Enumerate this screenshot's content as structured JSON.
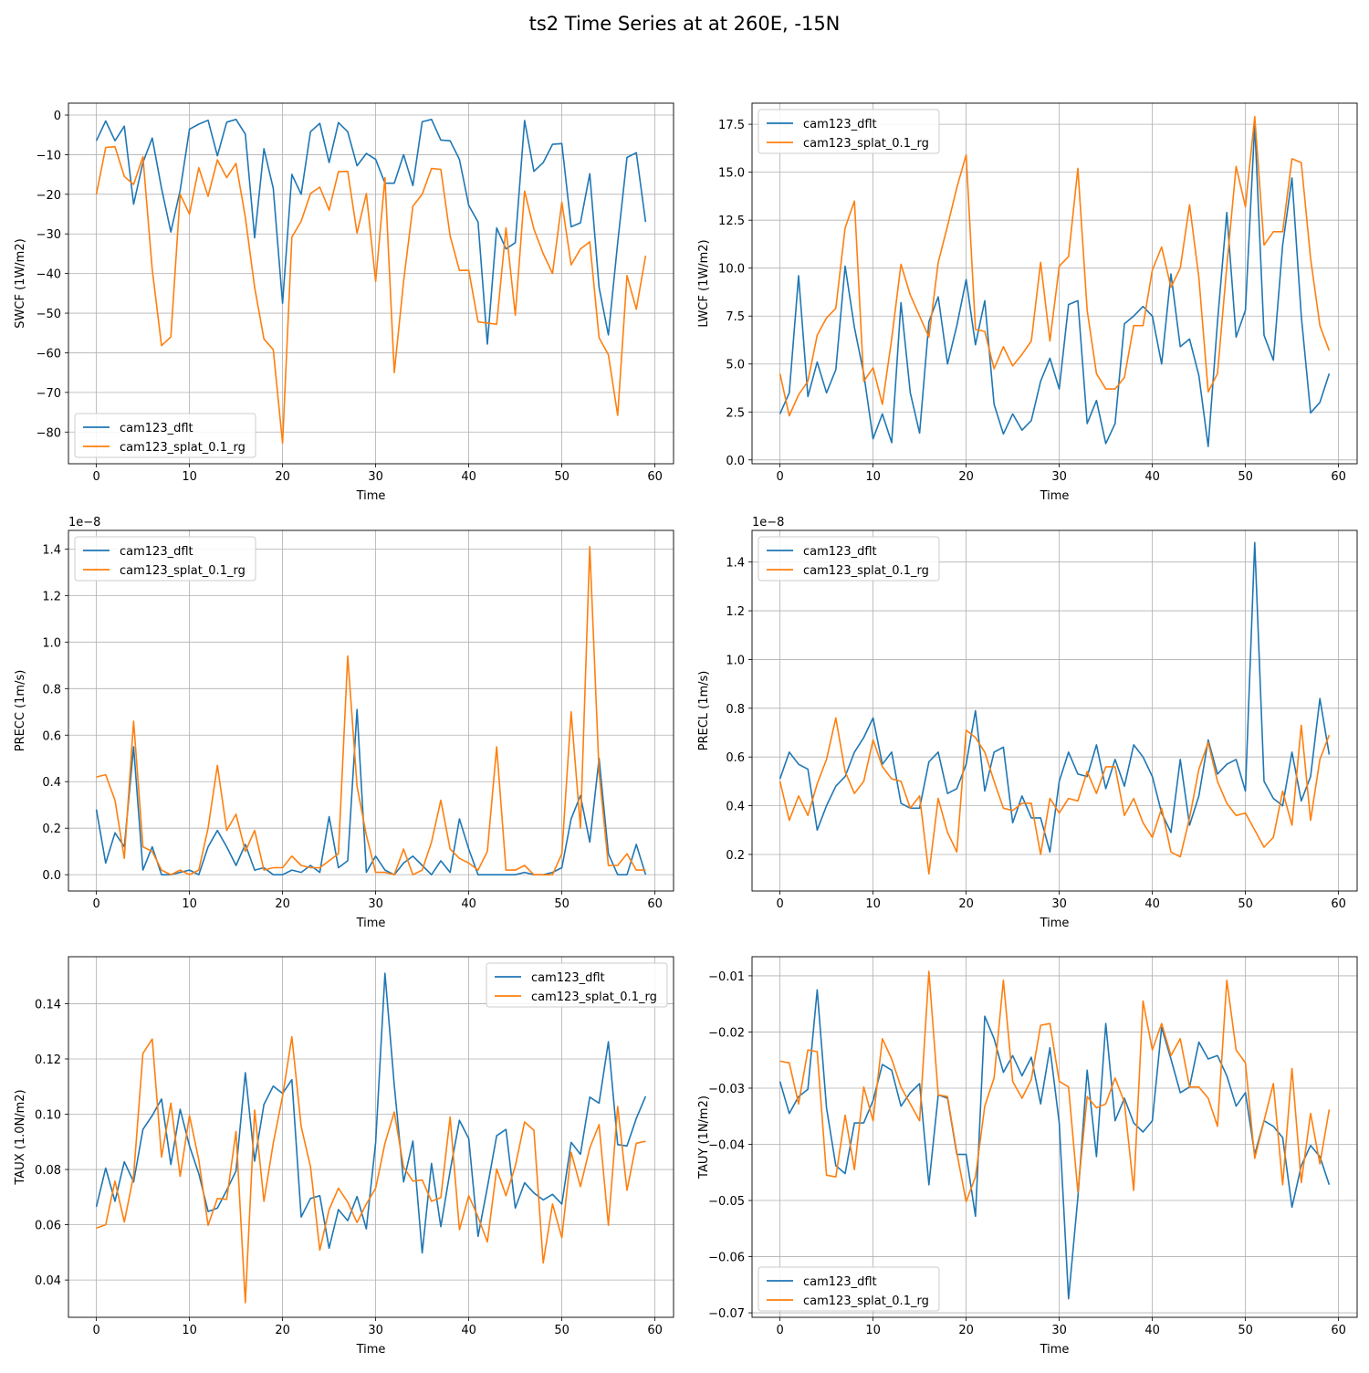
{
  "title": "ts2 Time Series at at 260E, -15N",
  "colors": {
    "series_0": "#1f77b4",
    "series_1": "#ff7f0e",
    "grid": "#b0b0b0",
    "axes": "#000000"
  },
  "chart_data": [
    {
      "type": "line",
      "ylabel": "SWCF (1W/m2)",
      "xlabel": "Time",
      "xlim": [
        -3,
        62
      ],
      "ylim": [
        -88,
        3
      ],
      "xticks": [
        0,
        10,
        20,
        30,
        40,
        50,
        60
      ],
      "yticks": [
        0,
        -10,
        -20,
        -30,
        -40,
        -50,
        -60,
        -70,
        -80
      ],
      "ytick_labels": [
        "0",
        "−10",
        "−20",
        "−30",
        "−40",
        "−50",
        "−60",
        "−70",
        "−80"
      ],
      "x_tick_labels": [
        "0",
        "10",
        "20",
        "30",
        "40",
        "50",
        "60"
      ],
      "grid": true,
      "legend": "lower-left",
      "series": [
        {
          "name": "cam123_dflt",
          "values": [
            -6.5,
            -1.5,
            -6.5,
            -2.8,
            -22.5,
            -12,
            -5.8,
            -18.5,
            -29.5,
            -19,
            -3.6,
            -2.3,
            -1.3,
            -10.3,
            -1.8,
            -1.1,
            -4.8,
            -31,
            -8.5,
            -18.5,
            -47.5,
            -15,
            -20,
            -4.2,
            -2.1,
            -12,
            -1.9,
            -4.2,
            -12.8,
            -9.7,
            -11.2,
            -17.2,
            -17.2,
            -10,
            -17.8,
            -1.7,
            -1.1,
            -6.3,
            -6.5,
            -11.2,
            -22.8,
            -27,
            -57.8,
            -28.5,
            -33.8,
            -32.2,
            -1.4,
            -14.2,
            -12,
            -7.4,
            -7.2,
            -28.2,
            -27.2,
            -14.8,
            -43.5,
            -55.5,
            -32.2,
            -10.7,
            -9.5,
            -27
          ]
        },
        {
          "name": "cam123_splat_0.1_rg",
          "values": [
            -20,
            -8.2,
            -8,
            -15.5,
            -17.5,
            -10.5,
            -39,
            -58.2,
            -56,
            -20,
            -25,
            -13.3,
            -20.5,
            -11.3,
            -15.8,
            -12.2,
            -25.8,
            -43.5,
            -56.5,
            -59.2,
            -82.8,
            -30.8,
            -26.8,
            -19.8,
            -18.2,
            -24,
            -14.3,
            -14.2,
            -29.8,
            -19.8,
            -42,
            -15.8,
            -65,
            -42,
            -23,
            -20,
            -13.5,
            -13.7,
            -30.5,
            -39.2,
            -39.2,
            -52.2,
            -52.5,
            -52.8,
            -28.5,
            -50.5,
            -19.2,
            -28.8,
            -35,
            -40,
            -22,
            -37.8,
            -33.8,
            -32,
            -56.2,
            -60.5,
            -75.8,
            -40.5,
            -49,
            -35.5
          ]
        }
      ]
    },
    {
      "type": "line",
      "ylabel": "LWCF (1W/m2)",
      "xlabel": "Time",
      "xlim": [
        -3,
        62
      ],
      "ylim": [
        -0.2,
        18.6
      ],
      "xticks": [
        0,
        10,
        20,
        30,
        40,
        50,
        60
      ],
      "yticks": [
        0,
        2.5,
        5,
        7.5,
        10,
        12.5,
        15,
        17.5
      ],
      "ytick_labels": [
        "0.0",
        "2.5",
        "5.0",
        "7.5",
        "10.0",
        "12.5",
        "15.0",
        "17.5"
      ],
      "x_tick_labels": [
        "0",
        "10",
        "20",
        "30",
        "40",
        "50",
        "60"
      ],
      "grid": true,
      "legend": "upper-left",
      "series": [
        {
          "name": "cam123_dflt",
          "values": [
            2.4,
            3.5,
            9.6,
            3.3,
            5.1,
            3.5,
            4.7,
            10.1,
            6.9,
            4.5,
            1.1,
            2.4,
            0.9,
            8.2,
            3.5,
            1.4,
            7.2,
            8.5,
            5,
            7,
            9.4,
            6,
            8.3,
            2.9,
            1.35,
            2.4,
            1.55,
            2.05,
            4.1,
            5.3,
            3.7,
            8.1,
            8.3,
            1.9,
            3.1,
            0.85,
            1.9,
            7.1,
            7.5,
            8,
            7.5,
            5,
            9.7,
            5.9,
            6.3,
            4.4,
            0.7,
            7.2,
            12.9,
            6.4,
            7.8,
            17.5,
            6.5,
            5.2,
            11.2,
            14.7,
            7.5,
            2.45,
            3,
            4.5
          ]
        },
        {
          "name": "cam123_splat_0.1_rg",
          "values": [
            4.5,
            2.3,
            3.4,
            4.1,
            6.5,
            7.4,
            7.9,
            12.1,
            13.5,
            4.1,
            4.8,
            2.9,
            6.3,
            10.2,
            8.6,
            7.5,
            6.4,
            10.3,
            12.2,
            14.2,
            15.9,
            6.8,
            6.7,
            4.75,
            5.9,
            4.9,
            5.5,
            6.2,
            10.3,
            6.2,
            10.1,
            10.6,
            15.2,
            7.8,
            4.5,
            3.7,
            3.7,
            4.3,
            7,
            7,
            9.9,
            11.1,
            9,
            10,
            13.3,
            9.5,
            3.55,
            4.5,
            10.1,
            15.3,
            13.2,
            17.9,
            11.2,
            11.9,
            11.9,
            15.7,
            15.5,
            10.5,
            7,
            5.7
          ]
        }
      ]
    },
    {
      "type": "line",
      "ylabel": "PRECC (1m/s)",
      "xlabel": "Time",
      "y_scale_note": "1e−8",
      "xlim": [
        -3,
        62
      ],
      "ylim": [
        -0.07,
        1.48
      ],
      "xticks": [
        0,
        10,
        20,
        30,
        40,
        50,
        60
      ],
      "yticks": [
        0,
        0.2,
        0.4,
        0.6,
        0.8,
        1.0,
        1.2,
        1.4
      ],
      "ytick_labels": [
        "0.0",
        "0.2",
        "0.4",
        "0.6",
        "0.8",
        "1.0",
        "1.2",
        "1.4"
      ],
      "x_tick_labels": [
        "0",
        "10",
        "20",
        "30",
        "40",
        "50",
        "60"
      ],
      "grid": true,
      "legend": "upper-left",
      "series": [
        {
          "name": "cam123_dflt",
          "values": [
            0.28,
            0.05,
            0.18,
            0.12,
            0.55,
            0.02,
            0.12,
            0,
            0,
            0.01,
            0.02,
            0,
            0.12,
            0.19,
            0.12,
            0.04,
            0.13,
            0.02,
            0.03,
            0,
            0,
            0.02,
            0.01,
            0.04,
            0.01,
            0.25,
            0.03,
            0.06,
            0.71,
            0.01,
            0.08,
            0.02,
            0,
            0.05,
            0.08,
            0.04,
            0,
            0.06,
            0.01,
            0.24,
            0.11,
            0,
            0,
            0,
            0,
            0,
            0.01,
            0,
            0,
            0.01,
            0.03,
            0.24,
            0.34,
            0.14,
            0.5,
            0.09,
            0,
            0,
            0.13,
            0
          ]
        },
        {
          "name": "cam123_splat_0.1_rg",
          "values": [
            0.42,
            0.43,
            0.32,
            0.07,
            0.66,
            0.12,
            0.1,
            0.02,
            0,
            0.02,
            0,
            0.02,
            0.2,
            0.47,
            0.19,
            0.26,
            0.1,
            0.19,
            0.02,
            0.03,
            0.03,
            0.08,
            0.04,
            0.03,
            0.03,
            0.06,
            0.09,
            0.94,
            0.38,
            0.17,
            0.01,
            0.01,
            0,
            0.11,
            0,
            0.02,
            0.14,
            0.32,
            0.11,
            0.07,
            0.05,
            0.02,
            0.1,
            0.55,
            0.02,
            0.02,
            0.04,
            0,
            0,
            0,
            0.09,
            0.7,
            0.2,
            1.41,
            0.44,
            0.04,
            0.04,
            0.09,
            0.02,
            0.02
          ]
        }
      ]
    },
    {
      "type": "line",
      "ylabel": "PRECL (1m/s)",
      "xlabel": "Time",
      "y_scale_note": "1e−8",
      "xlim": [
        -3,
        62
      ],
      "ylim": [
        0.05,
        1.53
      ],
      "xticks": [
        0,
        10,
        20,
        30,
        40,
        50,
        60
      ],
      "yticks": [
        0.2,
        0.4,
        0.6,
        0.8,
        1.0,
        1.2,
        1.4
      ],
      "ytick_labels": [
        "0.2",
        "0.4",
        "0.6",
        "0.8",
        "1.0",
        "1.2",
        "1.4"
      ],
      "x_tick_labels": [
        "0",
        "10",
        "20",
        "30",
        "40",
        "50",
        "60"
      ],
      "grid": true,
      "legend": "upper-left",
      "series": [
        {
          "name": "cam123_dflt",
          "values": [
            0.51,
            0.62,
            0.57,
            0.55,
            0.3,
            0.4,
            0.48,
            0.52,
            0.62,
            0.68,
            0.76,
            0.57,
            0.62,
            0.41,
            0.39,
            0.39,
            0.58,
            0.62,
            0.45,
            0.47,
            0.57,
            0.79,
            0.46,
            0.62,
            0.64,
            0.33,
            0.44,
            0.35,
            0.35,
            0.21,
            0.5,
            0.62,
            0.53,
            0.52,
            0.65,
            0.47,
            0.59,
            0.48,
            0.65,
            0.6,
            0.52,
            0.37,
            0.29,
            0.59,
            0.32,
            0.44,
            0.67,
            0.53,
            0.57,
            0.59,
            0.46,
            1.48,
            0.5,
            0.43,
            0.4,
            0.62,
            0.42,
            0.52,
            0.84,
            0.61
          ]
        },
        {
          "name": "cam123_splat_0.1_rg",
          "values": [
            0.5,
            0.34,
            0.44,
            0.36,
            0.49,
            0.59,
            0.76,
            0.54,
            0.45,
            0.5,
            0.67,
            0.56,
            0.51,
            0.5,
            0.39,
            0.44,
            0.12,
            0.43,
            0.29,
            0.21,
            0.71,
            0.68,
            0.62,
            0.5,
            0.39,
            0.38,
            0.41,
            0.41,
            0.2,
            0.43,
            0.37,
            0.43,
            0.42,
            0.54,
            0.45,
            0.56,
            0.56,
            0.36,
            0.43,
            0.33,
            0.27,
            0.39,
            0.21,
            0.19,
            0.35,
            0.55,
            0.66,
            0.5,
            0.41,
            0.36,
            0.37,
            0.3,
            0.23,
            0.27,
            0.46,
            0.32,
            0.73,
            0.34,
            0.59,
            0.69
          ]
        }
      ]
    },
    {
      "type": "line",
      "ylabel": "TAUX (1.0N/m2)",
      "xlabel": "Time",
      "xlim": [
        -3,
        62
      ],
      "ylim": [
        0.0265,
        0.157
      ],
      "xticks": [
        0,
        10,
        20,
        30,
        40,
        50,
        60
      ],
      "yticks": [
        0.04,
        0.06,
        0.08,
        0.1,
        0.12,
        0.14
      ],
      "ytick_labels": [
        "0.04",
        "0.06",
        "0.08",
        "0.10",
        "0.12",
        "0.14"
      ],
      "x_tick_labels": [
        "0",
        "10",
        "20",
        "30",
        "40",
        "50",
        "60"
      ],
      "grid": true,
      "legend": "upper-right",
      "series": [
        {
          "name": "cam123_dflt",
          "values": [
            0.0665,
            0.0805,
            0.0685,
            0.0828,
            0.0755,
            0.0945,
            0.0995,
            0.1055,
            0.0818,
            0.1018,
            0.0885,
            0.0785,
            0.0648,
            0.066,
            0.0725,
            0.0795,
            0.115,
            0.083,
            0.1035,
            0.1102,
            0.1075,
            0.1125,
            0.0628,
            0.0695,
            0.0705,
            0.0515,
            0.0655,
            0.0615,
            0.0702,
            0.0585,
            0.0898,
            0.151,
            0.1105,
            0.0755,
            0.0903,
            0.0498,
            0.0822,
            0.0593,
            0.0795,
            0.0978,
            0.0912,
            0.0558,
            0.0735,
            0.0922,
            0.0945,
            0.066,
            0.0752,
            0.0715,
            0.069,
            0.071,
            0.0675,
            0.0898,
            0.0855,
            0.1062,
            0.104,
            0.1262,
            0.089,
            0.0885,
            0.0985,
            0.1065
          ]
        },
        {
          "name": "cam123_splat_0.1_rg",
          "values": [
            0.0588,
            0.06,
            0.0758,
            0.061,
            0.0778,
            0.122,
            0.1272,
            0.0845,
            0.104,
            0.0775,
            0.0995,
            0.0835,
            0.0598,
            0.0695,
            0.0692,
            0.0938,
            0.0318,
            0.1015,
            0.0685,
            0.0895,
            0.1065,
            0.128,
            0.0955,
            0.081,
            0.0508,
            0.0655,
            0.0732,
            0.0682,
            0.0608,
            0.0675,
            0.0732,
            0.0895,
            0.1008,
            0.0808,
            0.0758,
            0.0762,
            0.0685,
            0.0698,
            0.099,
            0.0582,
            0.0705,
            0.0628,
            0.0538,
            0.0802,
            0.0705,
            0.0812,
            0.0972,
            0.0942,
            0.0462,
            0.0675,
            0.0553,
            0.0862,
            0.0738,
            0.0878,
            0.0962,
            0.0598,
            0.1028,
            0.0725,
            0.0895,
            0.0902
          ]
        }
      ]
    },
    {
      "type": "line",
      "ylabel": "TAUY (1N/m2)",
      "xlabel": "Time",
      "xlim": [
        -3,
        62
      ],
      "ylim": [
        -0.0708,
        -0.0066
      ],
      "xticks": [
        0,
        10,
        20,
        30,
        40,
        50,
        60
      ],
      "yticks": [
        -0.01,
        -0.02,
        -0.03,
        -0.04,
        -0.05,
        -0.06,
        -0.07
      ],
      "ytick_labels": [
        "−0.01",
        "−0.02",
        "−0.03",
        "−0.04",
        "−0.05",
        "−0.06",
        "−0.07"
      ],
      "x_tick_labels": [
        "0",
        "10",
        "20",
        "30",
        "40",
        "50",
        "60"
      ],
      "grid": true,
      "legend": "lower-left",
      "series": [
        {
          "name": "cam123_dflt",
          "values": [
            -0.0288,
            -0.0345,
            -0.0315,
            -0.0302,
            -0.0125,
            -0.0335,
            -0.0438,
            -0.0452,
            -0.0362,
            -0.0362,
            -0.0322,
            -0.0258,
            -0.0268,
            -0.0332,
            -0.0308,
            -0.0292,
            -0.0472,
            -0.0312,
            -0.0318,
            -0.0418,
            -0.0418,
            -0.0528,
            -0.0172,
            -0.0212,
            -0.0272,
            -0.0242,
            -0.0278,
            -0.0245,
            -0.0328,
            -0.0228,
            -0.0362,
            -0.0675,
            -0.0495,
            -0.0268,
            -0.0422,
            -0.0185,
            -0.0358,
            -0.0318,
            -0.0362,
            -0.0378,
            -0.0358,
            -0.0192,
            -0.0248,
            -0.0308,
            -0.0298,
            -0.0218,
            -0.0248,
            -0.0242,
            -0.0278,
            -0.0332,
            -0.0308,
            -0.0418,
            -0.0358,
            -0.0368,
            -0.0388,
            -0.0512,
            -0.0438,
            -0.0402,
            -0.0422,
            -0.0472
          ]
        },
        {
          "name": "cam123_splat_0.1_rg",
          "values": [
            -0.0252,
            -0.0255,
            -0.0328,
            -0.0232,
            -0.0235,
            -0.0455,
            -0.0458,
            -0.0348,
            -0.0445,
            -0.0298,
            -0.0358,
            -0.0212,
            -0.0248,
            -0.0298,
            -0.0328,
            -0.0358,
            -0.0092,
            -0.0312,
            -0.0315,
            -0.0415,
            -0.0502,
            -0.0458,
            -0.0332,
            -0.0282,
            -0.0108,
            -0.0288,
            -0.0318,
            -0.0285,
            -0.0188,
            -0.0185,
            -0.0288,
            -0.0298,
            -0.0485,
            -0.0315,
            -0.0335,
            -0.0328,
            -0.0282,
            -0.0325,
            -0.0482,
            -0.0145,
            -0.0232,
            -0.0185,
            -0.0242,
            -0.0212,
            -0.0298,
            -0.0298,
            -0.0318,
            -0.0368,
            -0.0108,
            -0.0232,
            -0.0255,
            -0.0425,
            -0.0358,
            -0.0292,
            -0.0472,
            -0.0265,
            -0.0468,
            -0.0345,
            -0.0435,
            -0.0338
          ]
        }
      ]
    }
  ]
}
